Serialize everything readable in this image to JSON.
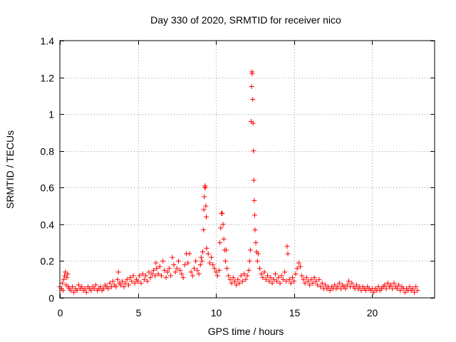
{
  "chart_data": {
    "type": "scatter",
    "title": "Day 330 of 2020, SRMTID for receiver nico",
    "xlabel": "GPS time / hours",
    "ylabel": "SRMTID / TECUs",
    "xlim": [
      0,
      24
    ],
    "ylim": [
      0,
      1.4
    ],
    "xticks": [
      0,
      5,
      10,
      15,
      20
    ],
    "xtick_labels": [
      "0",
      "5",
      "10",
      "15",
      "20"
    ],
    "yticks": [
      0,
      0.2,
      0.4,
      0.6,
      0.8,
      1.0,
      1.2,
      1.4
    ],
    "ytick_labels": [
      "0",
      "0.2",
      "0.4",
      "0.6",
      "0.8",
      "1",
      "1.2",
      "1.4"
    ],
    "grid": true,
    "marker": "+",
    "series": [
      {
        "name": "SRMTID",
        "color": "#ff0000",
        "points": [
          [
            0.0,
            0.06
          ],
          [
            0.1,
            0.05
          ],
          [
            0.15,
            0.08
          ],
          [
            0.2,
            0.04
          ],
          [
            0.25,
            0.1
          ],
          [
            0.3,
            0.12
          ],
          [
            0.35,
            0.14
          ],
          [
            0.4,
            0.07
          ],
          [
            0.45,
            0.11
          ],
          [
            0.5,
            0.13
          ],
          [
            0.55,
            0.06
          ],
          [
            0.6,
            0.05
          ],
          [
            0.7,
            0.04
          ],
          [
            0.8,
            0.06
          ],
          [
            0.9,
            0.03
          ],
          [
            1.0,
            0.05
          ],
          [
            1.1,
            0.04
          ],
          [
            1.2,
            0.07
          ],
          [
            1.3,
            0.05
          ],
          [
            1.4,
            0.06
          ],
          [
            1.5,
            0.04
          ],
          [
            1.6,
            0.05
          ],
          [
            1.7,
            0.03
          ],
          [
            1.8,
            0.06
          ],
          [
            1.9,
            0.05
          ],
          [
            2.0,
            0.04
          ],
          [
            2.1,
            0.06
          ],
          [
            2.2,
            0.05
          ],
          [
            2.3,
            0.07
          ],
          [
            2.4,
            0.04
          ],
          [
            2.5,
            0.05
          ],
          [
            2.6,
            0.06
          ],
          [
            2.7,
            0.04
          ],
          [
            2.8,
            0.05
          ],
          [
            2.9,
            0.07
          ],
          [
            3.0,
            0.06
          ],
          [
            3.1,
            0.05
          ],
          [
            3.2,
            0.08
          ],
          [
            3.3,
            0.06
          ],
          [
            3.4,
            0.09
          ],
          [
            3.5,
            0.07
          ],
          [
            3.6,
            0.06
          ],
          [
            3.7,
            0.1
          ],
          [
            3.75,
            0.14
          ],
          [
            3.8,
            0.08
          ],
          [
            3.9,
            0.07
          ],
          [
            4.0,
            0.09
          ],
          [
            4.1,
            0.06
          ],
          [
            4.2,
            0.08
          ],
          [
            4.3,
            0.1
          ],
          [
            4.4,
            0.07
          ],
          [
            4.5,
            0.11
          ],
          [
            4.6,
            0.09
          ],
          [
            4.7,
            0.12
          ],
          [
            4.8,
            0.08
          ],
          [
            4.9,
            0.1
          ],
          [
            5.0,
            0.09
          ],
          [
            5.1,
            0.12
          ],
          [
            5.2,
            0.08
          ],
          [
            5.3,
            0.13
          ],
          [
            5.4,
            0.1
          ],
          [
            5.5,
            0.12
          ],
          [
            5.6,
            0.09
          ],
          [
            5.7,
            0.14
          ],
          [
            5.8,
            0.11
          ],
          [
            5.9,
            0.13
          ],
          [
            6.0,
            0.15
          ],
          [
            6.1,
            0.12
          ],
          [
            6.15,
            0.19
          ],
          [
            6.2,
            0.16
          ],
          [
            6.3,
            0.13
          ],
          [
            6.4,
            0.17
          ],
          [
            6.5,
            0.12
          ],
          [
            6.6,
            0.2
          ],
          [
            6.7,
            0.15
          ],
          [
            6.8,
            0.11
          ],
          [
            6.9,
            0.14
          ],
          [
            7.0,
            0.16
          ],
          [
            7.1,
            0.12
          ],
          [
            7.2,
            0.22
          ],
          [
            7.3,
            0.18
          ],
          [
            7.4,
            0.14
          ],
          [
            7.5,
            0.16
          ],
          [
            7.6,
            0.2
          ],
          [
            7.7,
            0.15
          ],
          [
            7.8,
            0.13
          ],
          [
            7.9,
            0.11
          ],
          [
            8.0,
            0.18
          ],
          [
            8.1,
            0.24
          ],
          [
            8.2,
            0.19
          ],
          [
            8.3,
            0.24
          ],
          [
            8.4,
            0.14
          ],
          [
            8.5,
            0.12
          ],
          [
            8.6,
            0.16
          ],
          [
            8.7,
            0.2
          ],
          [
            8.8,
            0.15
          ],
          [
            8.9,
            0.13
          ],
          [
            9.0,
            0.18
          ],
          [
            9.05,
            0.22
          ],
          [
            9.1,
            0.2
          ],
          [
            9.15,
            0.25
          ],
          [
            9.2,
            0.37
          ],
          [
            9.22,
            0.48
          ],
          [
            9.25,
            0.55
          ],
          [
            9.28,
            0.6
          ],
          [
            9.3,
            0.61
          ],
          [
            9.32,
            0.6
          ],
          [
            9.35,
            0.5
          ],
          [
            9.38,
            0.44
          ],
          [
            9.4,
            0.27
          ],
          [
            9.5,
            0.24
          ],
          [
            9.6,
            0.19
          ],
          [
            9.7,
            0.22
          ],
          [
            9.8,
            0.18
          ],
          [
            9.9,
            0.16
          ],
          [
            10.0,
            0.14
          ],
          [
            10.1,
            0.12
          ],
          [
            10.2,
            0.15
          ],
          [
            10.25,
            0.3
          ],
          [
            10.3,
            0.38
          ],
          [
            10.35,
            0.46
          ],
          [
            10.4,
            0.46
          ],
          [
            10.45,
            0.4
          ],
          [
            10.5,
            0.32
          ],
          [
            10.55,
            0.26
          ],
          [
            10.6,
            0.2
          ],
          [
            10.65,
            0.26
          ],
          [
            10.7,
            0.16
          ],
          [
            10.8,
            0.12
          ],
          [
            10.9,
            0.1
          ],
          [
            11.0,
            0.08
          ],
          [
            11.1,
            0.11
          ],
          [
            11.2,
            0.09
          ],
          [
            11.3,
            0.07
          ],
          [
            11.4,
            0.1
          ],
          [
            11.5,
            0.08
          ],
          [
            11.6,
            0.12
          ],
          [
            11.7,
            0.09
          ],
          [
            11.8,
            0.13
          ],
          [
            11.9,
            0.1
          ],
          [
            12.0,
            0.12
          ],
          [
            12.1,
            0.15
          ],
          [
            12.15,
            0.2
          ],
          [
            12.2,
            0.26
          ],
          [
            12.25,
            0.96
          ],
          [
            12.28,
            1.15
          ],
          [
            12.3,
            1.23
          ],
          [
            12.32,
            1.22
          ],
          [
            12.35,
            1.08
          ],
          [
            12.37,
            0.95
          ],
          [
            12.4,
            0.8
          ],
          [
            12.42,
            0.64
          ],
          [
            12.45,
            0.53
          ],
          [
            12.48,
            0.45
          ],
          [
            12.5,
            0.37
          ],
          [
            12.55,
            0.3
          ],
          [
            12.6,
            0.25
          ],
          [
            12.65,
            0.2
          ],
          [
            12.7,
            0.24
          ],
          [
            12.8,
            0.16
          ],
          [
            12.9,
            0.13
          ],
          [
            13.0,
            0.11
          ],
          [
            13.1,
            0.14
          ],
          [
            13.2,
            0.1
          ],
          [
            13.3,
            0.12
          ],
          [
            13.4,
            0.09
          ],
          [
            13.5,
            0.11
          ],
          [
            13.6,
            0.08
          ],
          [
            13.7,
            0.1
          ],
          [
            13.8,
            0.13
          ],
          [
            13.9,
            0.09
          ],
          [
            14.0,
            0.11
          ],
          [
            14.1,
            0.08
          ],
          [
            14.2,
            0.12
          ],
          [
            14.3,
            0.1
          ],
          [
            14.4,
            0.14
          ],
          [
            14.5,
            0.09
          ],
          [
            14.55,
            0.28
          ],
          [
            14.6,
            0.24
          ],
          [
            14.7,
            0.1
          ],
          [
            14.8,
            0.08
          ],
          [
            14.9,
            0.11
          ],
          [
            15.0,
            0.09
          ],
          [
            15.1,
            0.13
          ],
          [
            15.2,
            0.16
          ],
          [
            15.3,
            0.19
          ],
          [
            15.4,
            0.17
          ],
          [
            15.5,
            0.12
          ],
          [
            15.6,
            0.1
          ],
          [
            15.7,
            0.08
          ],
          [
            15.8,
            0.11
          ],
          [
            15.9,
            0.09
          ],
          [
            16.0,
            0.07
          ],
          [
            16.1,
            0.1
          ],
          [
            16.2,
            0.08
          ],
          [
            16.3,
            0.11
          ],
          [
            16.4,
            0.09
          ],
          [
            16.5,
            0.07
          ],
          [
            16.6,
            0.1
          ],
          [
            16.7,
            0.06
          ],
          [
            16.8,
            0.08
          ],
          [
            16.9,
            0.05
          ],
          [
            17.0,
            0.07
          ],
          [
            17.1,
            0.05
          ],
          [
            17.2,
            0.06
          ],
          [
            17.3,
            0.04
          ],
          [
            17.4,
            0.06
          ],
          [
            17.5,
            0.05
          ],
          [
            17.6,
            0.07
          ],
          [
            17.7,
            0.05
          ],
          [
            17.8,
            0.06
          ],
          [
            17.9,
            0.08
          ],
          [
            18.0,
            0.05
          ],
          [
            18.1,
            0.07
          ],
          [
            18.2,
            0.06
          ],
          [
            18.3,
            0.05
          ],
          [
            18.4,
            0.07
          ],
          [
            18.5,
            0.09
          ],
          [
            18.6,
            0.06
          ],
          [
            18.7,
            0.08
          ],
          [
            18.8,
            0.06
          ],
          [
            18.9,
            0.05
          ],
          [
            19.0,
            0.07
          ],
          [
            19.1,
            0.05
          ],
          [
            19.2,
            0.06
          ],
          [
            19.3,
            0.04
          ],
          [
            19.4,
            0.06
          ],
          [
            19.5,
            0.05
          ],
          [
            19.6,
            0.04
          ],
          [
            19.7,
            0.06
          ],
          [
            19.8,
            0.05
          ],
          [
            19.9,
            0.04
          ],
          [
            20.0,
            0.05
          ],
          [
            20.1,
            0.03
          ],
          [
            20.2,
            0.05
          ],
          [
            20.3,
            0.04
          ],
          [
            20.4,
            0.06
          ],
          [
            20.5,
            0.04
          ],
          [
            20.6,
            0.05
          ],
          [
            20.7,
            0.06
          ],
          [
            20.8,
            0.07
          ],
          [
            20.9,
            0.05
          ],
          [
            21.0,
            0.08
          ],
          [
            21.1,
            0.06
          ],
          [
            21.2,
            0.07
          ],
          [
            21.3,
            0.05
          ],
          [
            21.4,
            0.08
          ],
          [
            21.5,
            0.06
          ],
          [
            21.6,
            0.05
          ],
          [
            21.7,
            0.07
          ],
          [
            21.8,
            0.04
          ],
          [
            21.9,
            0.06
          ],
          [
            22.0,
            0.05
          ],
          [
            22.1,
            0.03
          ],
          [
            22.2,
            0.05
          ],
          [
            22.3,
            0.04
          ],
          [
            22.4,
            0.06
          ],
          [
            22.5,
            0.04
          ],
          [
            22.6,
            0.05
          ],
          [
            22.7,
            0.03
          ],
          [
            22.8,
            0.06
          ],
          [
            22.9,
            0.04
          ]
        ]
      }
    ]
  }
}
